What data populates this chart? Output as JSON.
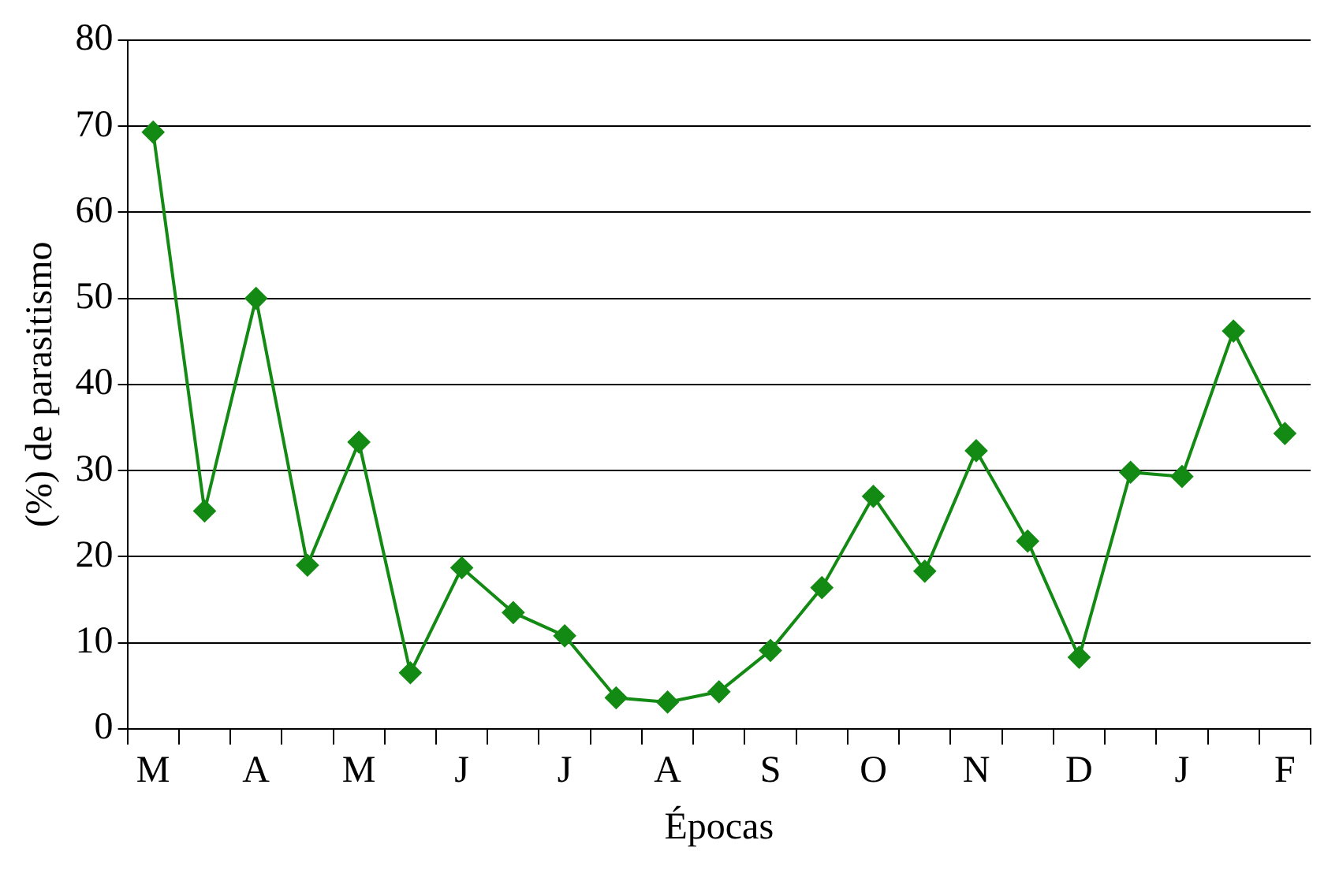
{
  "chart_data": {
    "type": "line",
    "xlabel": "Épocas",
    "ylabel": "(%) de parasitismo",
    "categories": [
      "M",
      null,
      "A",
      null,
      "M",
      null,
      "J",
      null,
      "J",
      null,
      "A",
      null,
      "S",
      null,
      "O",
      null,
      "N",
      null,
      "D",
      null,
      "J",
      null,
      "F"
    ],
    "series": [
      {
        "color": "#138a13",
        "values": [
          69.3,
          25.3,
          50,
          19,
          33.3,
          6.5,
          18.7,
          13.5,
          10.8,
          3.6,
          3.1,
          4.3,
          9.1,
          16.4,
          27,
          18.3,
          32.3,
          21.8,
          8.3,
          29.8,
          29.3,
          46.2,
          34.3
        ]
      }
    ],
    "ylim": [
      0,
      80
    ],
    "yticks": [
      0,
      10,
      20,
      30,
      40,
      50,
      60,
      70,
      80
    ],
    "grid": "y",
    "legend": false,
    "marker": "diamond",
    "line_style": "solid"
  }
}
